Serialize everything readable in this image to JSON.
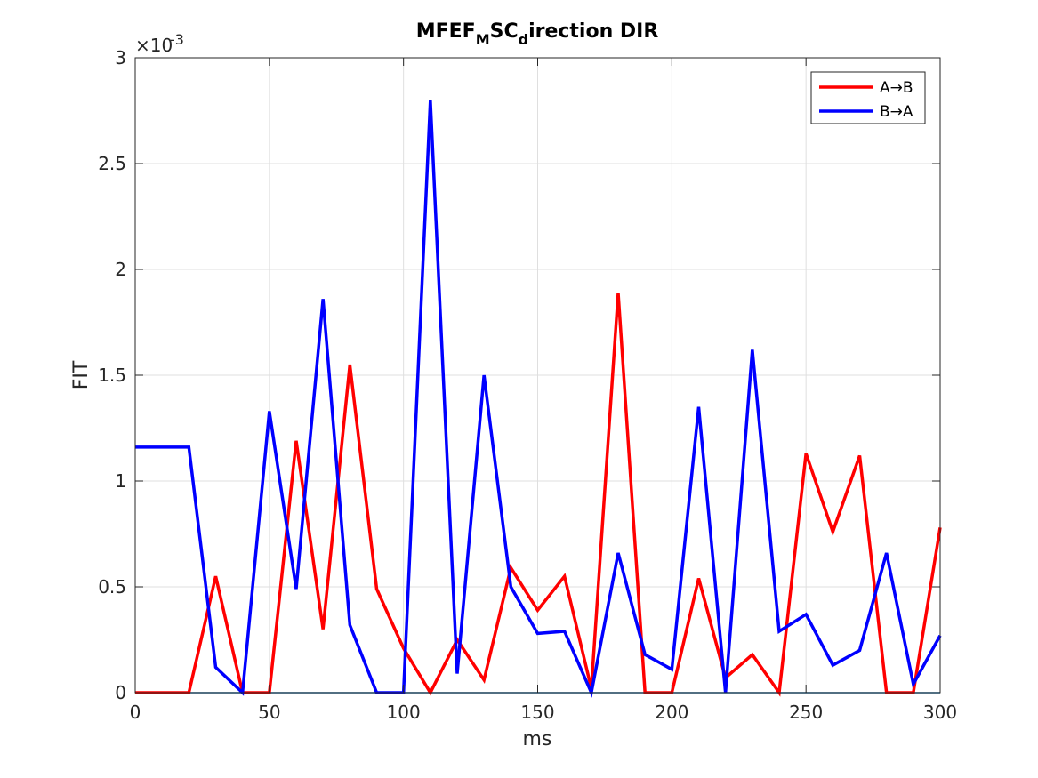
{
  "chart_data": {
    "type": "line",
    "title_parts": {
      "main": "MFEF",
      "sub1": "M",
      "mid": "SC",
      "sub2": "d",
      "end": "irection DIR"
    },
    "xlabel": "ms",
    "ylabel": "FIT",
    "y_exponent_label": "×10",
    "y_exponent_value": "-3",
    "xlim": [
      0,
      300
    ],
    "ylim": [
      0,
      3
    ],
    "xticks": [
      0,
      50,
      100,
      150,
      200,
      250,
      300
    ],
    "xtick_labels": [
      "0",
      "50",
      "100",
      "150",
      "200",
      "250",
      "300"
    ],
    "yticks": [
      0,
      0.5,
      1,
      1.5,
      2,
      2.5,
      3
    ],
    "ytick_labels": [
      "0",
      "0.5",
      "1",
      "1.5",
      "2",
      "2.5",
      "3"
    ],
    "grid": true,
    "legend_position": "top-right",
    "x": [
      0,
      10,
      20,
      30,
      40,
      50,
      60,
      70,
      80,
      90,
      100,
      110,
      120,
      130,
      140,
      150,
      160,
      170,
      180,
      190,
      200,
      210,
      220,
      230,
      240,
      250,
      260,
      270,
      280,
      290,
      300
    ],
    "series": [
      {
        "name": "A→B",
        "color": "#ff0000",
        "values": [
          0,
          0,
          0,
          0.55,
          0,
          0,
          1.19,
          0.3,
          1.55,
          0.49,
          0.21,
          0,
          0.25,
          0.06,
          0.59,
          0.39,
          0.55,
          0.02,
          1.89,
          0,
          0,
          0.54,
          0.07,
          0.18,
          0,
          1.13,
          0.76,
          1.12,
          0,
          0,
          0.78
        ]
      },
      {
        "name": "B→A",
        "color": "#0000ff",
        "values": [
          1.16,
          1.16,
          1.16,
          0.12,
          0,
          1.33,
          0.49,
          1.86,
          0.32,
          0,
          0,
          2.8,
          0.09,
          1.5,
          0.5,
          0.28,
          0.29,
          0,
          0.66,
          0.18,
          0.11,
          1.35,
          0,
          1.62,
          0.29,
          0.37,
          0.13,
          0.2,
          0.66,
          0.04,
          0.27
        ]
      }
    ],
    "baseline": {
      "value": 0,
      "color": "#0072bd"
    }
  }
}
